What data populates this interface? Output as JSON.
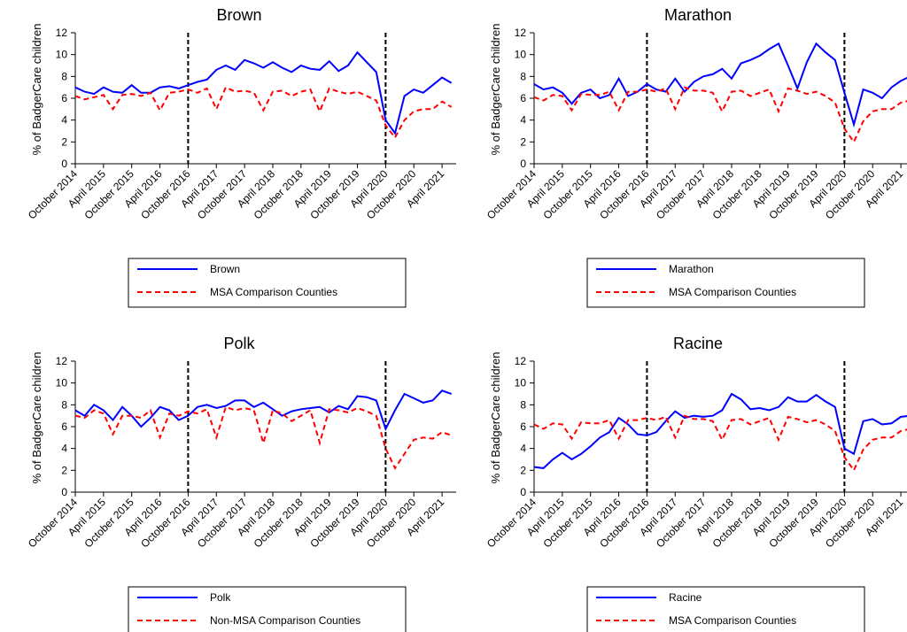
{
  "chart_data": [
    {
      "type": "line",
      "title": "Brown",
      "y_label": "% of BadgerCare children",
      "x": [
        "2014-10",
        "2014-12",
        "2015-02",
        "2015-04",
        "2015-06",
        "2015-08",
        "2015-10",
        "2015-12",
        "2016-02",
        "2016-04",
        "2016-06",
        "2016-08",
        "2016-10",
        "2016-12",
        "2017-02",
        "2017-04",
        "2017-06",
        "2017-08",
        "2017-10",
        "2017-12",
        "2018-02",
        "2018-04",
        "2018-06",
        "2018-08",
        "2018-10",
        "2018-12",
        "2019-02",
        "2019-04",
        "2019-06",
        "2019-08",
        "2019-10",
        "2019-12",
        "2020-02",
        "2020-04",
        "2020-06",
        "2020-08",
        "2020-10",
        "2020-12",
        "2021-02",
        "2021-04",
        "2021-06"
      ],
      "series": [
        {
          "name": "Brown",
          "color": "#0000ff",
          "style": "solid",
          "values": [
            7.0,
            6.6,
            6.4,
            7.0,
            6.6,
            6.5,
            7.2,
            6.5,
            6.5,
            7.0,
            7.1,
            6.9,
            7.2,
            7.5,
            7.7,
            8.6,
            9.0,
            8.6,
            9.5,
            9.2,
            8.8,
            9.3,
            8.8,
            8.4,
            9.0,
            8.7,
            8.6,
            9.4,
            8.5,
            9.0,
            10.2,
            9.3,
            8.4,
            4.0,
            2.8,
            6.2,
            6.8,
            6.5,
            7.2,
            7.9,
            7.4
          ]
        },
        {
          "name": "MSA Comparison Counties",
          "color": "#ff0000",
          "style": "dashed",
          "values": [
            6.2,
            5.9,
            6.1,
            6.3,
            5.0,
            6.3,
            6.4,
            6.2,
            6.5,
            4.9,
            6.5,
            6.6,
            6.8,
            6.5,
            6.9,
            5.0,
            7.0,
            6.6,
            6.7,
            6.5,
            4.9,
            6.6,
            6.7,
            6.2,
            6.6,
            6.8,
            4.8,
            6.9,
            6.6,
            6.4,
            6.6,
            6.2,
            5.8,
            3.5,
            2.4,
            4.0,
            4.8,
            5.0,
            5.0,
            5.7,
            5.2
          ]
        }
      ],
      "xlim": [
        "2014-10",
        "2021-07"
      ],
      "xticks": [
        {
          "value": "2014-10",
          "label": "October 2014"
        },
        {
          "value": "2015-04",
          "label": "April 2015"
        },
        {
          "value": "2015-10",
          "label": "October 2015"
        },
        {
          "value": "2016-04",
          "label": "April 2016"
        },
        {
          "value": "2016-10",
          "label": "October 2016"
        },
        {
          "value": "2017-04",
          "label": "April 2017"
        },
        {
          "value": "2017-10",
          "label": "October 2017"
        },
        {
          "value": "2018-04",
          "label": "April 2018"
        },
        {
          "value": "2018-10",
          "label": "October 2018"
        },
        {
          "value": "2019-04",
          "label": "April 2019"
        },
        {
          "value": "2019-10",
          "label": "October 2019"
        },
        {
          "value": "2020-04",
          "label": "April 2020"
        },
        {
          "value": "2020-10",
          "label": "October 2020"
        },
        {
          "value": "2021-04",
          "label": "April 2021"
        }
      ],
      "ylim": [
        0,
        12
      ],
      "yticks": [
        0,
        2,
        4,
        6,
        8,
        10,
        12
      ],
      "vlines": [
        "2016-10",
        "2020-04"
      ]
    },
    {
      "type": "line",
      "title": "Marathon",
      "y_label": "% of BadgerCare children",
      "x": [
        "2014-10",
        "2014-12",
        "2015-02",
        "2015-04",
        "2015-06",
        "2015-08",
        "2015-10",
        "2015-12",
        "2016-02",
        "2016-04",
        "2016-06",
        "2016-08",
        "2016-10",
        "2016-12",
        "2017-02",
        "2017-04",
        "2017-06",
        "2017-08",
        "2017-10",
        "2017-12",
        "2018-02",
        "2018-04",
        "2018-06",
        "2018-08",
        "2018-10",
        "2018-12",
        "2019-02",
        "2019-04",
        "2019-06",
        "2019-08",
        "2019-10",
        "2019-12",
        "2020-02",
        "2020-04",
        "2020-06",
        "2020-08",
        "2020-10",
        "2020-12",
        "2021-02",
        "2021-04",
        "2021-06"
      ],
      "series": [
        {
          "name": "Marathon",
          "color": "#0000ff",
          "style": "solid",
          "values": [
            7.3,
            6.8,
            7.0,
            6.5,
            5.5,
            6.5,
            6.8,
            6.0,
            6.3,
            7.8,
            6.2,
            6.6,
            7.3,
            6.8,
            6.6,
            7.8,
            6.6,
            7.5,
            8.0,
            8.2,
            8.7,
            7.8,
            9.2,
            9.5,
            9.9,
            10.5,
            11.0,
            9.0,
            6.9,
            9.3,
            11.0,
            10.2,
            9.5,
            6.5,
            3.6,
            6.8,
            6.5,
            6.0,
            7.0,
            7.6,
            8.0
          ]
        },
        {
          "name": "MSA Comparison Counties",
          "color": "#ff0000",
          "style": "dashed",
          "values": [
            6.1,
            5.8,
            6.3,
            6.2,
            4.9,
            6.4,
            6.3,
            6.3,
            6.6,
            4.9,
            6.6,
            6.6,
            6.8,
            6.6,
            6.9,
            5.0,
            7.0,
            6.7,
            6.7,
            6.5,
            4.8,
            6.6,
            6.7,
            6.2,
            6.5,
            6.8,
            4.8,
            6.9,
            6.7,
            6.4,
            6.6,
            6.2,
            5.6,
            3.2,
            2.0,
            3.9,
            4.8,
            5.0,
            5.0,
            5.6,
            5.8
          ]
        }
      ],
      "xlim": [
        "2014-10",
        "2021-07"
      ],
      "xticks": [
        {
          "value": "2014-10",
          "label": "October 2014"
        },
        {
          "value": "2015-04",
          "label": "April 2015"
        },
        {
          "value": "2015-10",
          "label": "October 2015"
        },
        {
          "value": "2016-04",
          "label": "April 2016"
        },
        {
          "value": "2016-10",
          "label": "October 2016"
        },
        {
          "value": "2017-04",
          "label": "April 2017"
        },
        {
          "value": "2017-10",
          "label": "October 2017"
        },
        {
          "value": "2018-04",
          "label": "April 2018"
        },
        {
          "value": "2018-10",
          "label": "October 2018"
        },
        {
          "value": "2019-04",
          "label": "April 2019"
        },
        {
          "value": "2019-10",
          "label": "October 2019"
        },
        {
          "value": "2020-04",
          "label": "April 2020"
        },
        {
          "value": "2020-10",
          "label": "October 2020"
        },
        {
          "value": "2021-04",
          "label": "April 2021"
        }
      ],
      "ylim": [
        0,
        12
      ],
      "yticks": [
        0,
        2,
        4,
        6,
        8,
        10,
        12
      ],
      "vlines": [
        "2016-10",
        "2020-04"
      ]
    },
    {
      "type": "line",
      "title": "Polk",
      "y_label": "% of BadgerCare children",
      "x": [
        "2014-10",
        "2014-12",
        "2015-02",
        "2015-04",
        "2015-06",
        "2015-08",
        "2015-10",
        "2015-12",
        "2016-02",
        "2016-04",
        "2016-06",
        "2016-08",
        "2016-10",
        "2016-12",
        "2017-02",
        "2017-04",
        "2017-06",
        "2017-08",
        "2017-10",
        "2017-12",
        "2018-02",
        "2018-04",
        "2018-06",
        "2018-08",
        "2018-10",
        "2018-12",
        "2019-02",
        "2019-04",
        "2019-06",
        "2019-08",
        "2019-10",
        "2019-12",
        "2020-02",
        "2020-04",
        "2020-06",
        "2020-08",
        "2020-10",
        "2020-12",
        "2021-02",
        "2021-04",
        "2021-06"
      ],
      "series": [
        {
          "name": "Polk",
          "color": "#0000ff",
          "style": "solid",
          "values": [
            7.5,
            7.0,
            8.0,
            7.5,
            6.6,
            7.8,
            7.0,
            6.0,
            6.8,
            7.8,
            7.5,
            6.6,
            7.0,
            7.8,
            8.0,
            7.7,
            7.9,
            8.4,
            8.4,
            7.8,
            8.2,
            7.6,
            7.0,
            7.4,
            7.6,
            7.7,
            7.8,
            7.3,
            7.9,
            7.6,
            8.8,
            8.7,
            8.4,
            5.8,
            7.5,
            9.0,
            8.6,
            8.2,
            8.4,
            9.3,
            9.0
          ]
        },
        {
          "name": "Non-MSA Comparison Counties",
          "color": "#ff0000",
          "style": "dashed",
          "values": [
            7.0,
            6.8,
            7.5,
            7.2,
            5.3,
            7.0,
            7.0,
            6.8,
            7.5,
            5.0,
            7.2,
            7.0,
            7.4,
            7.2,
            7.6,
            5.0,
            7.8,
            7.5,
            7.7,
            7.5,
            4.5,
            7.5,
            7.2,
            6.5,
            7.0,
            7.5,
            4.5,
            7.6,
            7.5,
            7.3,
            7.7,
            7.4,
            7.0,
            4.0,
            2.2,
            3.5,
            4.8,
            5.0,
            4.9,
            5.5,
            5.2
          ]
        }
      ],
      "xlim": [
        "2014-10",
        "2021-07"
      ],
      "xticks": [
        {
          "value": "2014-10",
          "label": "October 2014"
        },
        {
          "value": "2015-04",
          "label": "April 2015"
        },
        {
          "value": "2015-10",
          "label": "October 2015"
        },
        {
          "value": "2016-04",
          "label": "April 2016"
        },
        {
          "value": "2016-10",
          "label": "October 2016"
        },
        {
          "value": "2017-04",
          "label": "April 2017"
        },
        {
          "value": "2017-10",
          "label": "October 2017"
        },
        {
          "value": "2018-04",
          "label": "April 2018"
        },
        {
          "value": "2018-10",
          "label": "October 2018"
        },
        {
          "value": "2019-04",
          "label": "April 2019"
        },
        {
          "value": "2019-10",
          "label": "October 2019"
        },
        {
          "value": "2020-04",
          "label": "April 2020"
        },
        {
          "value": "2020-10",
          "label": "October 2020"
        },
        {
          "value": "2021-04",
          "label": "April 2021"
        }
      ],
      "ylim": [
        0,
        12
      ],
      "yticks": [
        0,
        2,
        4,
        6,
        8,
        10,
        12
      ],
      "vlines": [
        "2016-10",
        "2020-04"
      ]
    },
    {
      "type": "line",
      "title": "Racine",
      "y_label": "% of BadgerCare children",
      "x": [
        "2014-10",
        "2014-12",
        "2015-02",
        "2015-04",
        "2015-06",
        "2015-08",
        "2015-10",
        "2015-12",
        "2016-02",
        "2016-04",
        "2016-06",
        "2016-08",
        "2016-10",
        "2016-12",
        "2017-02",
        "2017-04",
        "2017-06",
        "2017-08",
        "2017-10",
        "2017-12",
        "2018-02",
        "2018-04",
        "2018-06",
        "2018-08",
        "2018-10",
        "2018-12",
        "2019-02",
        "2019-04",
        "2019-06",
        "2019-08",
        "2019-10",
        "2019-12",
        "2020-02",
        "2020-04",
        "2020-06",
        "2020-08",
        "2020-10",
        "2020-12",
        "2021-02",
        "2021-04",
        "2021-06"
      ],
      "series": [
        {
          "name": "Racine",
          "color": "#0000ff",
          "style": "solid",
          "values": [
            2.3,
            2.2,
            3.0,
            3.6,
            3.0,
            3.5,
            4.2,
            5.0,
            5.5,
            6.8,
            6.2,
            5.3,
            5.2,
            5.5,
            6.5,
            7.4,
            6.8,
            7.0,
            6.9,
            7.0,
            7.5,
            9.0,
            8.5,
            7.6,
            7.7,
            7.5,
            7.8,
            8.7,
            8.3,
            8.3,
            8.9,
            8.3,
            7.8,
            4.0,
            3.5,
            6.5,
            6.7,
            6.2,
            6.3,
            6.9,
            7.0
          ]
        },
        {
          "name": "MSA Comparison Counties",
          "color": "#ff0000",
          "style": "dashed",
          "values": [
            6.2,
            5.8,
            6.3,
            6.2,
            4.9,
            6.4,
            6.3,
            6.3,
            6.6,
            4.9,
            6.6,
            6.6,
            6.8,
            6.6,
            6.9,
            5.0,
            7.0,
            6.7,
            6.7,
            6.5,
            4.8,
            6.6,
            6.7,
            6.2,
            6.5,
            6.8,
            4.8,
            6.9,
            6.7,
            6.4,
            6.6,
            6.2,
            5.6,
            3.2,
            2.0,
            3.9,
            4.8,
            5.0,
            5.0,
            5.6,
            5.8
          ]
        }
      ],
      "xlim": [
        "2014-10",
        "2021-07"
      ],
      "xticks": [
        {
          "value": "2014-10",
          "label": "October 2014"
        },
        {
          "value": "2015-04",
          "label": "April 2015"
        },
        {
          "value": "2015-10",
          "label": "October 2015"
        },
        {
          "value": "2016-04",
          "label": "April 2016"
        },
        {
          "value": "2016-10",
          "label": "October 2016"
        },
        {
          "value": "2017-04",
          "label": "April 2017"
        },
        {
          "value": "2017-10",
          "label": "October 2017"
        },
        {
          "value": "2018-04",
          "label": "April 2018"
        },
        {
          "value": "2018-10",
          "label": "October 2018"
        },
        {
          "value": "2019-04",
          "label": "April 2019"
        },
        {
          "value": "2019-10",
          "label": "October 2019"
        },
        {
          "value": "2020-04",
          "label": "April 2020"
        },
        {
          "value": "2020-10",
          "label": "October 2020"
        },
        {
          "value": "2021-04",
          "label": "April 2021"
        }
      ],
      "ylim": [
        0,
        12
      ],
      "yticks": [
        0,
        2,
        4,
        6,
        8,
        10,
        12
      ],
      "vlines": [
        "2016-10",
        "2020-04"
      ]
    }
  ]
}
